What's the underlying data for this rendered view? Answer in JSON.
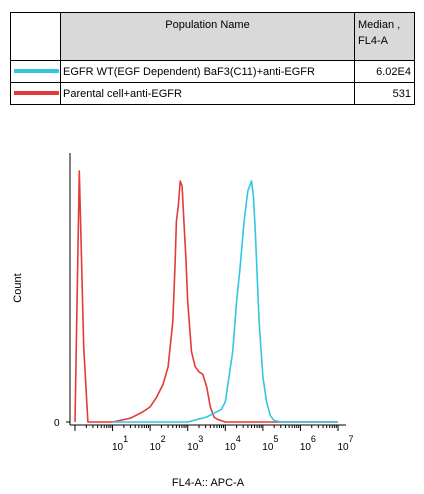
{
  "table": {
    "header_population": "Population Name",
    "header_median": [
      "Median ,",
      "FL4-A"
    ],
    "rows": [
      {
        "name": "EGFR WT(EGF Dependent) BaF3(C11)+anti-EGFR",
        "median": "6.02E4",
        "color": "#33c6e0"
      },
      {
        "name": "Parental cell+anti-EGFR",
        "median": "531",
        "color": "#e33a3a"
      }
    ]
  },
  "chart_data": {
    "type": "line",
    "title": "",
    "xlabel": "FL4-A:: APC-A",
    "ylabel": "Count",
    "x_scale": "log",
    "xlim": [
      1,
      10000000
    ],
    "ylim": [
      0,
      100
    ],
    "y_ticks": [
      "0"
    ],
    "x_ticks": [
      {
        "base": "10",
        "exp": "1"
      },
      {
        "base": "10",
        "exp": "2"
      },
      {
        "base": "10",
        "exp": "3"
      },
      {
        "base": "10",
        "exp": "4"
      },
      {
        "base": "10",
        "exp": "5"
      },
      {
        "base": "10",
        "exp": "6"
      },
      {
        "base": "10",
        "exp": "7"
      }
    ],
    "series": [
      {
        "name": "Parental cell+anti-EGFR",
        "color": "#e33a3a",
        "x": [
          1,
          1.3,
          1.7,
          2.2,
          4,
          10,
          30,
          63,
          100,
          150,
          220,
          300,
          400,
          460,
          500,
          560,
          630,
          710,
          790,
          890,
          1000,
          1260,
          1580,
          2000,
          2500,
          3200,
          4000,
          5000,
          6300,
          8000,
          10000,
          20000,
          100000,
          1000000,
          10000000
        ],
        "y": [
          0,
          100,
          30,
          0,
          0,
          0,
          1.5,
          4,
          6,
          10,
          15,
          22,
          40,
          62,
          80,
          86,
          96,
          94,
          80,
          66,
          48,
          28,
          22,
          20,
          19,
          14,
          6,
          2,
          1,
          0.5,
          0,
          0,
          0,
          0,
          0
        ]
      },
      {
        "name": "EGFR WT(EGF Dependent) BaF3(C11)+anti-EGFR",
        "color": "#33c6e0",
        "x": [
          10,
          1000,
          3200,
          5000,
          7900,
          10000,
          15800,
          20000,
          25000,
          31600,
          39800,
          50000,
          56000,
          63100,
          70800,
          79400,
          100000,
          125900,
          158500,
          200000,
          316000,
          1000000,
          10000000
        ],
        "y": [
          0,
          0,
          2,
          3.5,
          5,
          8,
          28,
          48,
          62,
          80,
          92,
          96,
          90,
          76,
          58,
          40,
          18,
          8,
          2.5,
          0.5,
          0,
          0,
          0
        ]
      }
    ],
    "grid": false,
    "legend": "table above chart"
  }
}
